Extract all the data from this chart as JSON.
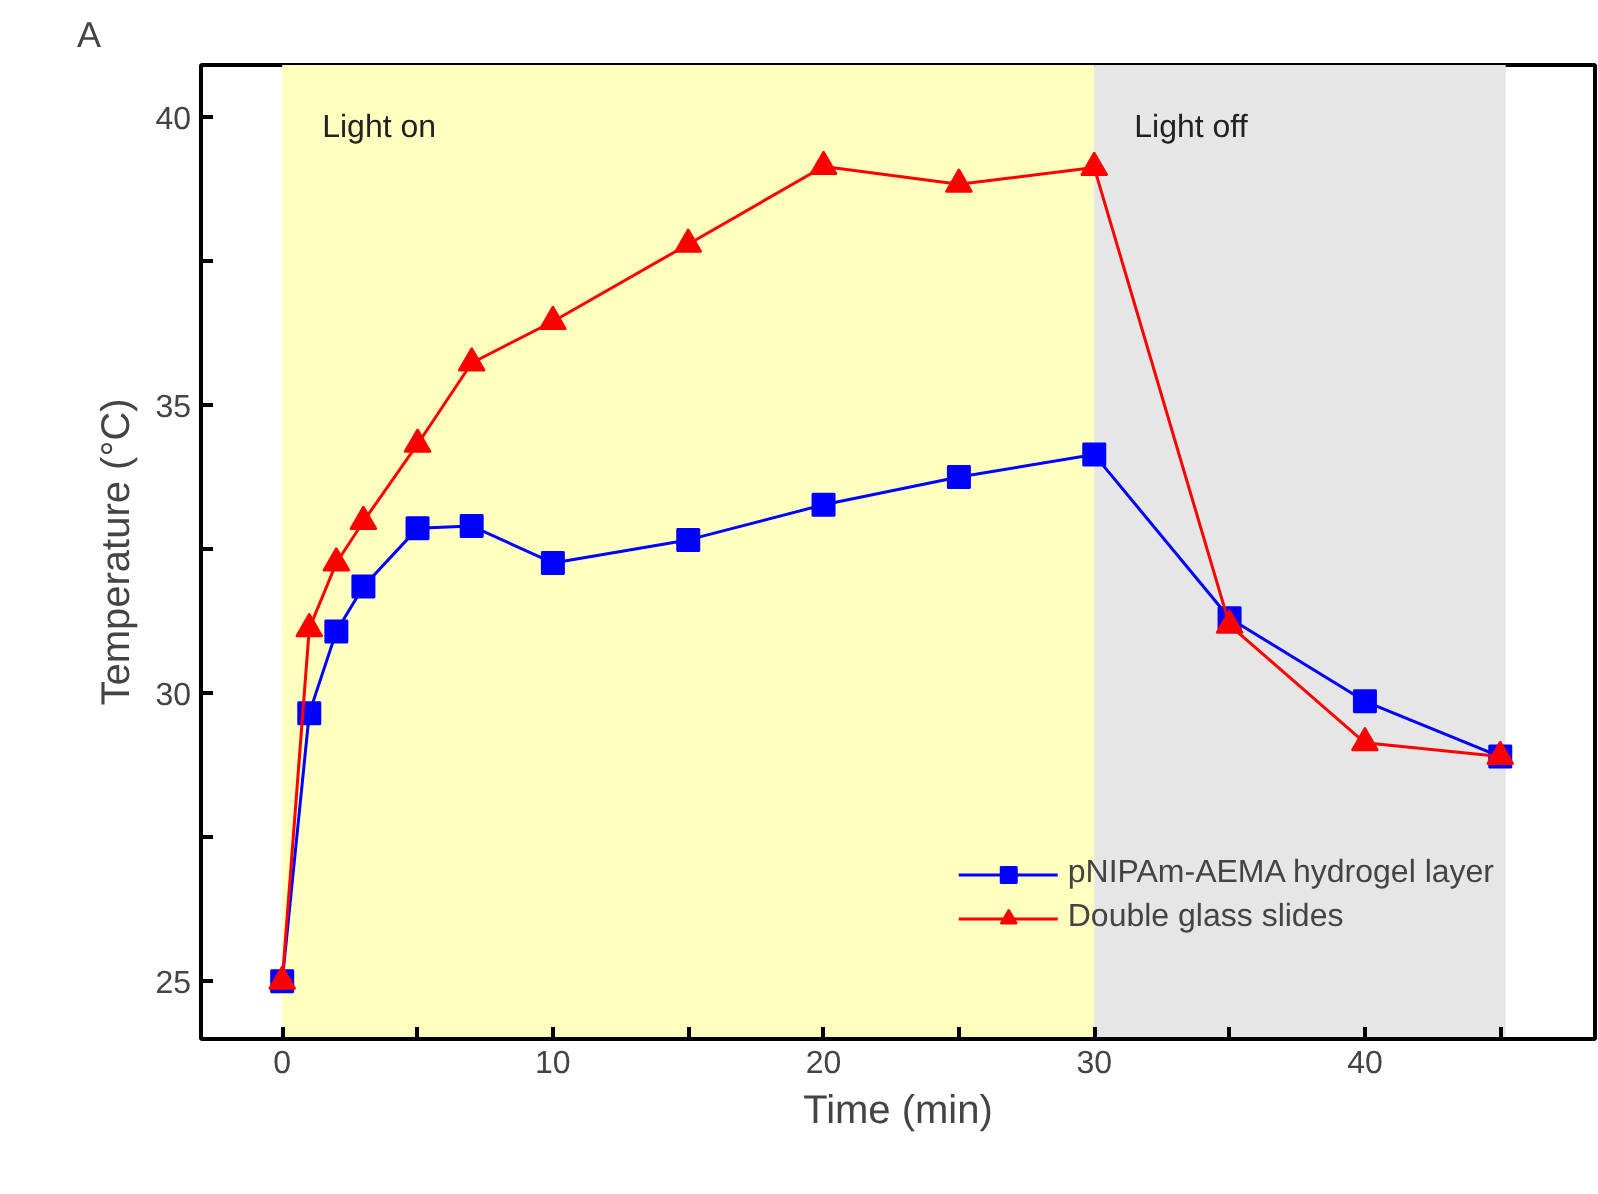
{
  "chart_data": {
    "type": "line",
    "xlabel": "Time (min)",
    "ylabel": "Temperature (°C)",
    "annotations": [
      "A"
    ],
    "x": [
      0,
      1,
      2,
      3,
      5,
      7,
      10,
      15,
      20,
      25,
      30,
      35,
      40,
      45
    ],
    "series": [
      {
        "name": "pNIPAm-AEMA hydrogel layer",
        "color": "#0000ff",
        "marker": "square",
        "values": [
          25,
          29.65,
          31.07,
          31.85,
          32.86,
          32.9,
          32.26,
          32.66,
          33.27,
          33.75,
          34.14,
          31.3,
          29.86,
          28.9
        ]
      },
      {
        "name": "Double glass slides",
        "color": "#ff0000",
        "marker": "triangle",
        "values": [
          25,
          31.12,
          32.26,
          32.98,
          34.32,
          35.73,
          36.45,
          37.79,
          39.14,
          38.83,
          39.12,
          31.18,
          29.14,
          28.9
        ]
      }
    ],
    "bands": [
      {
        "axis": "x",
        "from": 0,
        "to": 30,
        "label": "Light on",
        "color": "#ffffc0"
      },
      {
        "axis": "x",
        "from": 30,
        "to": 45.2,
        "label": "Light off",
        "color": "#e6e6e6"
      }
    ],
    "xlim": [
      -3,
      48.5
    ],
    "ylim": [
      24,
      40.9
    ],
    "xticks": [
      0,
      {
        "value": 5,
        "label": null
      },
      10,
      {
        "value": 15,
        "label": null
      },
      20,
      {
        "value": 25,
        "label": null
      },
      30,
      {
        "value": 35,
        "label": null
      },
      40,
      {
        "value": 45,
        "label": null
      }
    ],
    "yticks": [
      25,
      {
        "value": 27.5,
        "label": null
      },
      30,
      {
        "value": 32.5,
        "label": null
      },
      35,
      {
        "value": 37.5,
        "label": null
      },
      40
    ],
    "grid": false,
    "legend": "bottom right",
    "line_style": "solid"
  }
}
